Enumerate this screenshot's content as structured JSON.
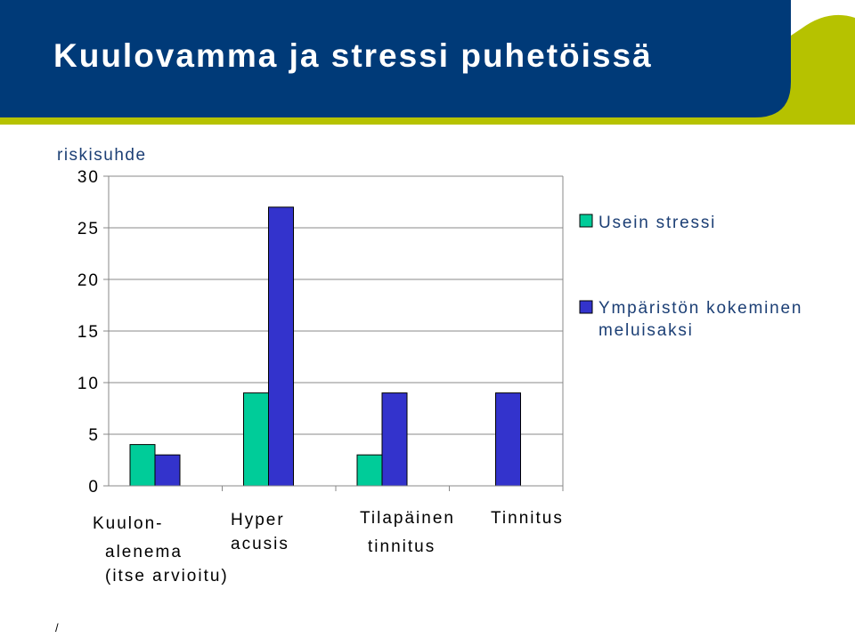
{
  "title": "Kuulovamma ja stressi puhetöissä",
  "footer_mark": "/",
  "colors": {
    "header": "#003a78",
    "header_accent": "#b6c200",
    "series1": "#00cc99",
    "series2": "#3333cc"
  },
  "chart_data": {
    "type": "bar",
    "ylabel": "riskisuhde",
    "ylim": [
      0,
      30
    ],
    "yticks": [
      0,
      5,
      10,
      15,
      20,
      25,
      30
    ],
    "grid": true,
    "legend_position": "right",
    "categories": [
      [
        "Kuulon-",
        "alenema",
        "(itse arvioitu)"
      ],
      [
        "Hyper",
        "acusis"
      ],
      [
        "Tilapäinen",
        "tinnitus"
      ],
      [
        "Tinnitus"
      ]
    ],
    "series": [
      {
        "name": "Usein stressi",
        "legend_lines": [
          "Usein stressi"
        ],
        "color": "#00cc99",
        "values": [
          4,
          9,
          3,
          null
        ]
      },
      {
        "name": "Ympäristön kokeminen meluisaksi",
        "legend_lines": [
          "Ympäristön kokeminen",
          "meluisaksi"
        ],
        "color": "#3333cc",
        "values": [
          3,
          27,
          9,
          9
        ]
      }
    ]
  }
}
